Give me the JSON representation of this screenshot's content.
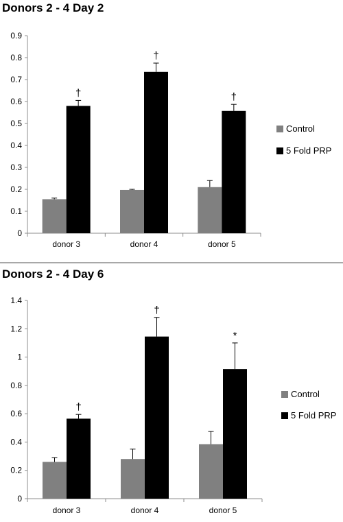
{
  "chart_data": [
    {
      "type": "bar",
      "title": "Donors 2 - 4 Day 2",
      "categories": [
        "donor 3",
        "donor 4",
        "donor 5"
      ],
      "series": [
        {
          "name": "Control",
          "values": [
            0.155,
            0.197,
            0.21
          ],
          "errors": [
            0.005,
            0.003,
            0.03
          ],
          "color": "#808080",
          "annotations": [
            "",
            "",
            ""
          ]
        },
        {
          "name": "5 Fold PRP",
          "values": [
            0.58,
            0.735,
            0.557
          ],
          "errors": [
            0.025,
            0.04,
            0.03
          ],
          "color": "#000000",
          "annotations": [
            "†",
            "†",
            "†"
          ]
        }
      ],
      "ylim": [
        0,
        0.9
      ],
      "yticks": [
        "0",
        "0.1",
        "0.2",
        "0.3",
        "0.4",
        "0.5",
        "0.6",
        "0.7",
        "0.8",
        "0.9"
      ],
      "grid": false,
      "legend_position": "right"
    },
    {
      "type": "bar",
      "title": "Donors 2 - 4 Day 6",
      "categories": [
        "donor 3",
        "donor 4",
        "donor 5"
      ],
      "series": [
        {
          "name": "Control",
          "values": [
            0.26,
            0.28,
            0.385
          ],
          "errors": [
            0.03,
            0.07,
            0.09
          ],
          "color": "#808080",
          "annotations": [
            "",
            "",
            ""
          ]
        },
        {
          "name": "5 Fold PRP",
          "values": [
            0.565,
            1.145,
            0.915
          ],
          "errors": [
            0.03,
            0.135,
            0.185
          ],
          "color": "#000000",
          "annotations": [
            "†",
            "†",
            "*"
          ]
        }
      ],
      "ylim": [
        0,
        1.4
      ],
      "yticks": [
        "0",
        "0.2",
        "0.4",
        "0.6",
        "0.8",
        "1",
        "1.2",
        "1.4"
      ],
      "grid": false,
      "legend_position": "right"
    }
  ]
}
